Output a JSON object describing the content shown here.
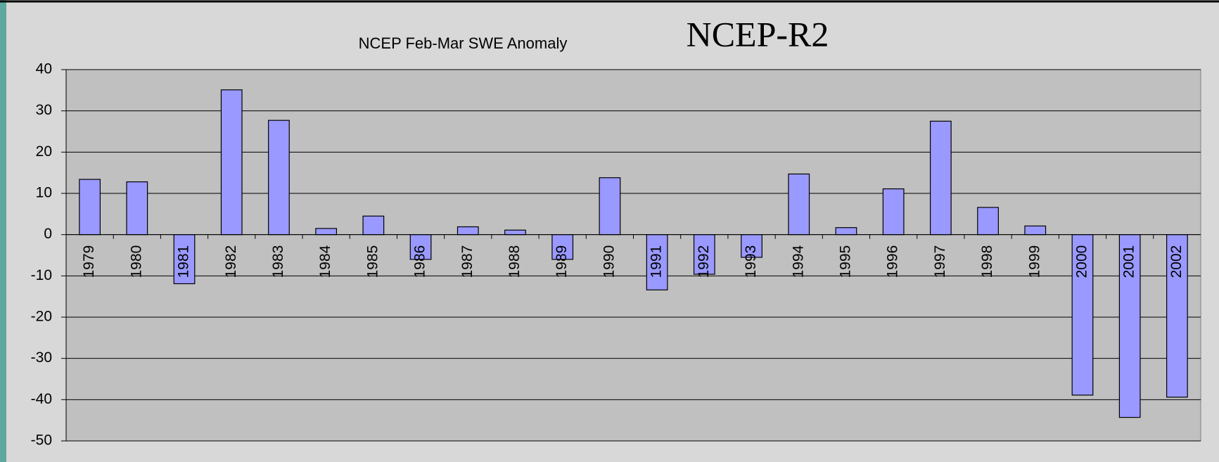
{
  "chart_data": {
    "type": "bar",
    "title": "NCEP Feb-Mar SWE Anomaly",
    "annotation": "NCEP-R2",
    "categories": [
      "1979",
      "1980",
      "1981",
      "1982",
      "1983",
      "1984",
      "1985",
      "1986",
      "1987",
      "1988",
      "1989",
      "1990",
      "1991",
      "1992",
      "1993",
      "1994",
      "1995",
      "1996",
      "1997",
      "1998",
      "1999",
      "2000",
      "2001",
      "2002"
    ],
    "values": [
      13.4,
      12.8,
      -11.9,
      35.1,
      27.7,
      1.5,
      4.5,
      -6.0,
      1.9,
      1.1,
      -6.0,
      13.8,
      -13.4,
      -9.6,
      -5.5,
      14.7,
      1.7,
      11.1,
      27.5,
      6.6,
      2.1,
      -38.9,
      -44.3,
      -39.4
    ],
    "color": "#9999ff",
    "ylim": [
      -50,
      40
    ],
    "yticks": [
      -50,
      -40,
      -30,
      -20,
      -10,
      0,
      10,
      20,
      30,
      40
    ],
    "grid": true
  }
}
